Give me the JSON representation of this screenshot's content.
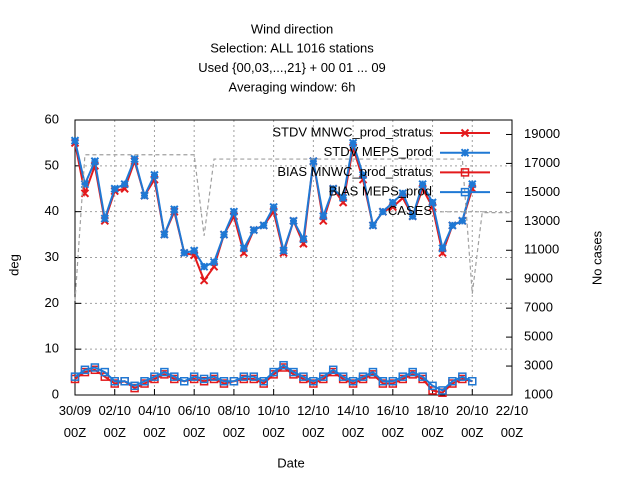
{
  "chart_data": {
    "type": "line",
    "title": [
      "Wind direction",
      "Selection: ALL    1016 stations",
      "Used {00,03,...,21} + 00 01 ... 09",
      "Averaging window:  6h"
    ],
    "xlabel": "Date",
    "ylabel": "deg",
    "y2label": "No cases",
    "x": [
      "30/09 00Z",
      "30/09 12Z",
      "01/10 00Z",
      "01/10 12Z",
      "02/10 00Z",
      "02/10 12Z",
      "03/10 00Z",
      "03/10 12Z",
      "04/10 00Z",
      "04/10 12Z",
      "05/10 00Z",
      "05/10 12Z",
      "06/10 00Z",
      "06/10 12Z",
      "07/10 00Z",
      "07/10 12Z",
      "08/10 00Z",
      "08/10 12Z",
      "09/10 00Z",
      "09/10 12Z",
      "10/10 00Z",
      "10/10 12Z",
      "11/10 00Z",
      "11/10 12Z",
      "12/10 00Z",
      "12/10 12Z",
      "13/10 00Z",
      "13/10 12Z",
      "14/10 00Z",
      "14/10 12Z",
      "15/10 00Z",
      "15/10 12Z",
      "16/10 00Z",
      "16/10 12Z",
      "17/10 00Z",
      "17/10 12Z",
      "18/10 00Z",
      "18/10 12Z",
      "19/10 00Z",
      "19/10 12Z",
      "20/10 00Z",
      "20/10 12Z",
      "21/10 00Z",
      "21/10 12Z",
      "22/10 00Z"
    ],
    "xlim": [
      "30/09 00Z",
      "22/10 00Z"
    ],
    "xticks": [
      {
        "value": "30/09 00Z",
        "label": "30/09\n00Z"
      },
      {
        "value": "02/10 00Z",
        "label": "02/10\n00Z"
      },
      {
        "value": "04/10 00Z",
        "label": "04/10\n00Z"
      },
      {
        "value": "06/10 00Z",
        "label": "06/10\n00Z"
      },
      {
        "value": "08/10 00Z",
        "label": "08/10\n00Z"
      },
      {
        "value": "10/10 00Z",
        "label": "10/10\n00Z"
      },
      {
        "value": "12/10 00Z",
        "label": "12/10\n00Z"
      },
      {
        "value": "14/10 00Z",
        "label": "14/10\n00Z"
      },
      {
        "value": "16/10 00Z",
        "label": "16/10\n00Z"
      },
      {
        "value": "18/10 00Z",
        "label": "18/10\n00Z"
      },
      {
        "value": "20/10 00Z",
        "label": "20/10\n00Z"
      },
      {
        "value": "22/10 00Z",
        "label": "22/10\n00Z"
      }
    ],
    "ylim": [
      0,
      60
    ],
    "yticks": [
      0,
      10,
      20,
      30,
      40,
      50,
      60
    ],
    "y2lim": [
      1000,
      20000
    ],
    "y2ticks": [
      1000,
      3000,
      5000,
      7000,
      9000,
      11000,
      13000,
      15000,
      17000,
      19000
    ],
    "grid": true,
    "legend": "top-right",
    "series": [
      {
        "name": "STDV MNWC_prod_stratus",
        "color": "#e31a1c",
        "marker": "x",
        "values": [
          55,
          44,
          50,
          38,
          44.5,
          45,
          51,
          43.5,
          47,
          35,
          40,
          31,
          30.5,
          25,
          28,
          35,
          39,
          31,
          36,
          37,
          40,
          31,
          38,
          33,
          51,
          38,
          45,
          42,
          54,
          47,
          37,
          40,
          41,
          43,
          39,
          45,
          41,
          31,
          37,
          38,
          45,
          null,
          null,
          null,
          null
        ]
      },
      {
        "name": "STDV MEPS_prod",
        "color": "#1f78d4",
        "marker": "star",
        "values": [
          55.5,
          46,
          51,
          38.5,
          45,
          46,
          51.5,
          43.5,
          48,
          35,
          40.5,
          31,
          31.5,
          28,
          29,
          35,
          40,
          32,
          36,
          37,
          41,
          31.5,
          38,
          34,
          51,
          39,
          45,
          43,
          55,
          48,
          37,
          40,
          42,
          44,
          39,
          46,
          42,
          32,
          37,
          38,
          46,
          null,
          null,
          null,
          null
        ]
      },
      {
        "name": "BIAS MNWC_prod_stratus",
        "color": "#e31a1c",
        "marker": "square",
        "values": [
          3.5,
          5,
          5.5,
          4,
          2.5,
          3,
          1.5,
          2.5,
          3.5,
          4.5,
          3.5,
          3,
          3.5,
          3,
          3.5,
          2.5,
          3,
          3.5,
          3.5,
          2.5,
          4.5,
          6,
          4.5,
          3.5,
          2.5,
          3.5,
          5,
          3.5,
          2.5,
          3.5,
          4.5,
          2.5,
          2.5,
          3.5,
          4.5,
          3.5,
          1,
          0.5,
          2.5,
          3.5,
          3,
          null,
          null,
          null,
          null
        ]
      },
      {
        "name": "BIAS MEPS_prod",
        "color": "#1f78d4",
        "marker": "square",
        "values": [
          4,
          5.5,
          6,
          5,
          3,
          3,
          2,
          3,
          4,
          5,
          4,
          3,
          4,
          3.5,
          4,
          3,
          3,
          4,
          4,
          3,
          5,
          6.5,
          5,
          4,
          3,
          4,
          5.5,
          4,
          3,
          4,
          5,
          3,
          3,
          4,
          5,
          4,
          2,
          1,
          3,
          4,
          3,
          null,
          null,
          null,
          null
        ]
      },
      {
        "name": "CASES",
        "color": "#a0a0a0",
        "marker": "none",
        "dash": true,
        "axis": "y2",
        "values": [
          7500,
          17600,
          17600,
          17600,
          17600,
          17600,
          17600,
          17600,
          17600,
          17600,
          17600,
          17600,
          17600,
          12000,
          17300,
          17300,
          17300,
          17300,
          17300,
          17300,
          17300,
          17300,
          17300,
          17300,
          17300,
          17300,
          17300,
          17300,
          17300,
          17300,
          17300,
          17300,
          17300,
          17300,
          17300,
          17300,
          17300,
          17300,
          17300,
          17300,
          8000,
          13600,
          13600,
          13600,
          13600
        ]
      }
    ]
  }
}
